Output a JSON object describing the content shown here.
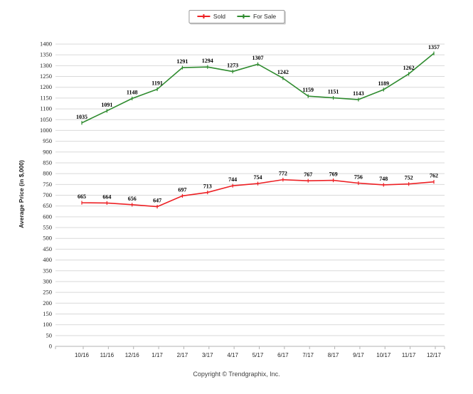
{
  "legend": {
    "items": [
      {
        "label": "Sold"
      },
      {
        "label": "For Sale"
      }
    ]
  },
  "footer": {
    "copyright": "Copyright © Trendgraphix, Inc."
  },
  "chart_data": {
    "type": "line",
    "title": "",
    "xlabel": "",
    "ylabel": "Average Price (in $,000)",
    "categories": [
      "10/16",
      "11/16",
      "12/16",
      "1/17",
      "2/17",
      "3/17",
      "4/17",
      "5/17",
      "6/17",
      "7/17",
      "8/17",
      "9/17",
      "10/17",
      "11/17",
      "12/17"
    ],
    "series": [
      {
        "name": "Sold",
        "color": "#ed2024",
        "values": [
          665,
          664,
          656,
          647,
          697,
          713,
          744,
          754,
          772,
          767,
          769,
          756,
          748,
          752,
          762
        ]
      },
      {
        "name": "For Sale",
        "color": "#2e8b2e",
        "values": [
          1035,
          1091,
          1148,
          1191,
          1291,
          1294,
          1273,
          1307,
          1242,
          1159,
          1151,
          1143,
          1189,
          1262,
          1357
        ]
      }
    ],
    "ylim": [
      0,
      1400
    ],
    "ytick_step": 50,
    "grid": "horizontal",
    "legend_position": "top-center",
    "colors": {
      "grid": "#d9d9d9",
      "axis": "#b3b3b3",
      "tick_text": "#262626",
      "data_label": "#000000",
      "axis_title": "#1a1a1a"
    }
  }
}
